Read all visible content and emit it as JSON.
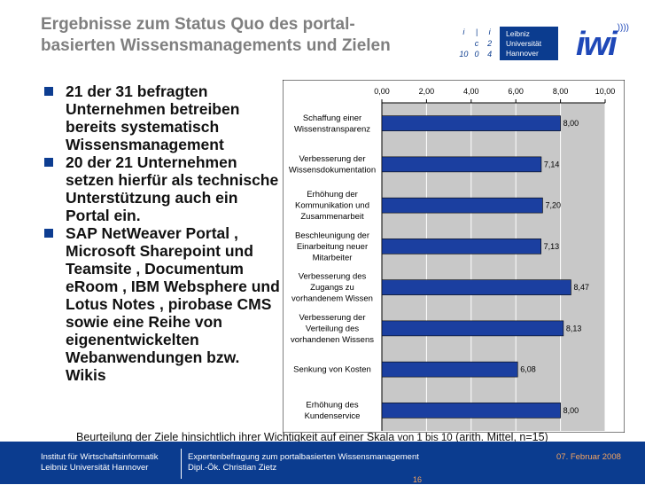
{
  "title": {
    "line1": "Ergebnisse zum Status Quo des portal-",
    "line2": "basierten Wissensmanagements und Zielen"
  },
  "logos": {
    "uni_cells": [
      "i",
      "|",
      "i",
      "",
      "c",
      "2",
      "10",
      "0",
      "4"
    ],
    "uni_name": [
      "Leibniz",
      "Universität",
      "Hannover"
    ],
    "iwi": "iwi",
    "iwi_arcs": "))))"
  },
  "bullets": [
    "21 der 31 befragten Unternehmen betreiben bereits systematisch Wissensmanagement",
    "20 der 21 Unternehmen setzen hierfür als technische Unterstützung auch ein Portal ein.",
    "SAP NetWeaver Portal , Microsoft Sharepoint und Teamsite , Documentum eRoom , IBM Websphere  und Lotus Notes , pirobase CMS  sowie eine Reihe von eigenentwickelten Webanwendungen bzw. Wikis"
  ],
  "chart_data": {
    "type": "bar",
    "orientation": "horizontal",
    "categories": [
      [
        "Schaffung einer",
        "Wissenstransparenz"
      ],
      [
        "Verbesserung der",
        "Wissensdokumentation"
      ],
      [
        "Erhöhung der",
        "Kommunikation und",
        "Zusammenarbeit"
      ],
      [
        "Beschleunigung der",
        "Einarbeitung neuer",
        "Mitarbeiter"
      ],
      [
        "Verbesserung des",
        "Zugangs zu",
        "vorhandenem Wissen"
      ],
      [
        "Verbesserung der",
        "Verteilung des",
        "vorhandenen Wissens"
      ],
      [
        "Senkung von Kosten"
      ],
      [
        "Erhöhung des",
        "Kundenservice"
      ]
    ],
    "values": [
      8.0,
      7.14,
      7.2,
      7.13,
      8.47,
      8.13,
      6.08,
      8.0
    ],
    "value_labels": [
      "8,00",
      "7,14",
      "7,20",
      "7,13",
      "8,47",
      "8,13",
      "6,08",
      "8,00"
    ],
    "x_ticks": [
      "0,00",
      "2,00",
      "4,00",
      "6,00",
      "8,00",
      "10,00"
    ],
    "xlim": [
      0,
      10
    ],
    "axis_position": "top",
    "grid": true,
    "bar_color": "#1b3fa0",
    "plot_bg": "#c8c8c8"
  },
  "caption": {
    "before": "Beurteilung der Ziele hinsichtlich ihrer Wichtigkeit auf einer Skala ",
    "von": "von 1 bis 10",
    "after": " (arith. Mittel, n=15)"
  },
  "footer": {
    "inst1": "Institut für Wirtschaftsinformatik",
    "inst2": "Leibniz Universität Hannover",
    "talk1": "Expertenbefragung zum portalbasierten Wissensmanagement",
    "talk2": "Dipl.-Ök. Christian Zietz",
    "date": "07. Februar 2008",
    "page": "16"
  }
}
